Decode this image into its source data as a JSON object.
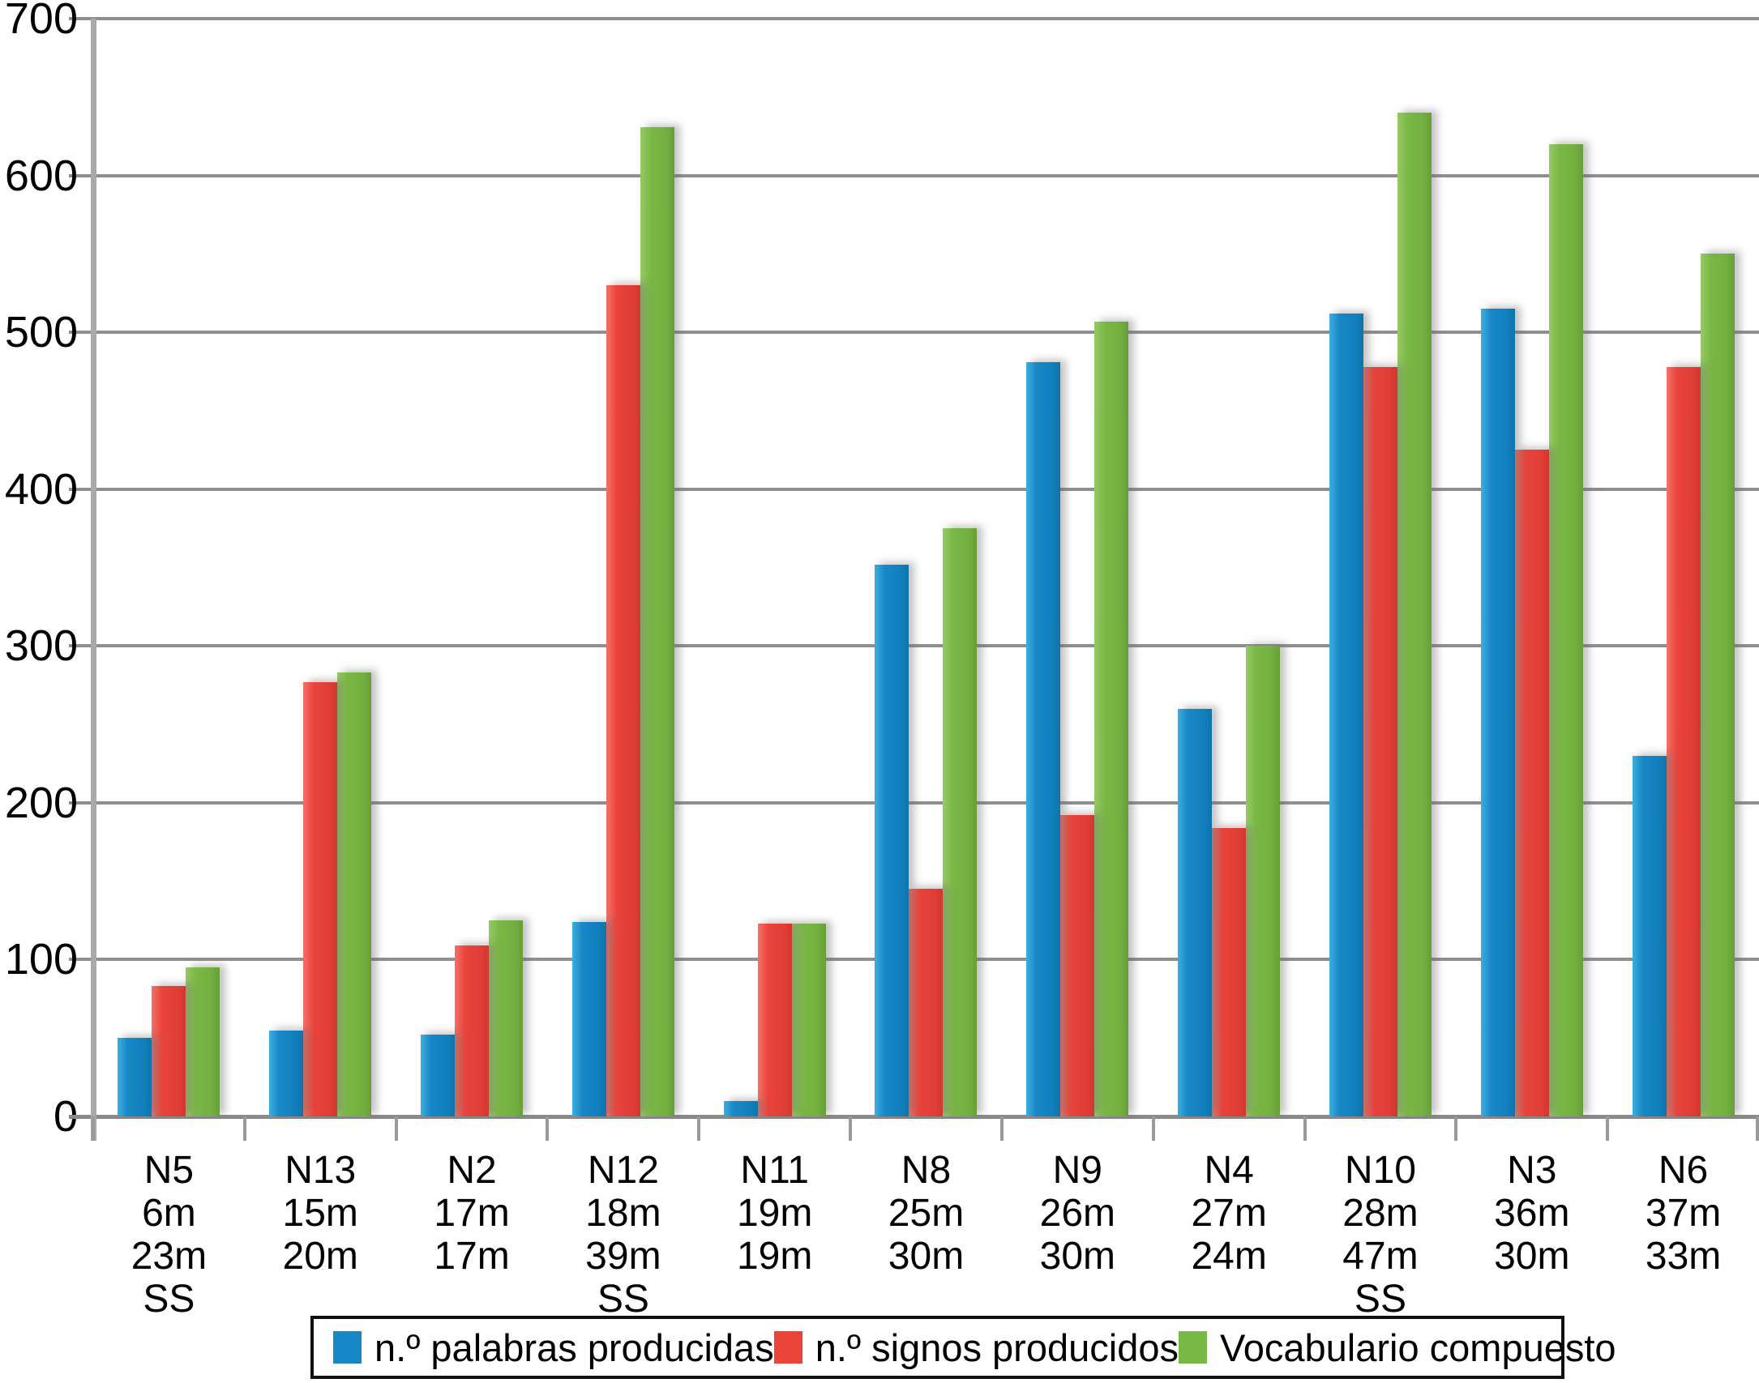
{
  "chart_data": {
    "type": "bar",
    "title": "",
    "xlabel": "",
    "ylabel": "",
    "ylim": [
      0,
      700
    ],
    "y_ticks": [
      0,
      100,
      200,
      300,
      400,
      500,
      600,
      700
    ],
    "grid": true,
    "legend_position": "bottom",
    "categories": [
      {
        "label": "N5",
        "sublabels": [
          "6m",
          "23m",
          "SS"
        ]
      },
      {
        "label": "N13",
        "sublabels": [
          "15m",
          "20m"
        ]
      },
      {
        "label": "N2",
        "sublabels": [
          "17m",
          "17m"
        ]
      },
      {
        "label": "N12",
        "sublabels": [
          "18m",
          "39m",
          "SS"
        ]
      },
      {
        "label": "N11",
        "sublabels": [
          "19m",
          "19m"
        ]
      },
      {
        "label": "N8",
        "sublabels": [
          "25m",
          "30m"
        ]
      },
      {
        "label": "N9",
        "sublabels": [
          "26m",
          "30m"
        ]
      },
      {
        "label": "N4",
        "sublabels": [
          "27m",
          "24m"
        ]
      },
      {
        "label": "N10",
        "sublabels": [
          "28m",
          "47m",
          "SS"
        ]
      },
      {
        "label": "N3",
        "sublabels": [
          "36m",
          "30m"
        ]
      },
      {
        "label": "N6",
        "sublabels": [
          "37m",
          "33m"
        ]
      }
    ],
    "series": [
      {
        "name": "n.º palabras producidas",
        "color": "#1787c6",
        "values": [
          50,
          55,
          52,
          124,
          10,
          352,
          481,
          260,
          512,
          515,
          230
        ]
      },
      {
        "name": "n.º signos producidos",
        "color": "#ea443b",
        "values": [
          83,
          277,
          109,
          530,
          123,
          145,
          192,
          184,
          478,
          425,
          478
        ]
      },
      {
        "name": "Vocabulario compuesto",
        "color": "#7ab845",
        "values": [
          95,
          283,
          125,
          631,
          123,
          375,
          507,
          300,
          640,
          620,
          550
        ]
      }
    ],
    "colors": {
      "gridline": "#8f8f8f",
      "axis": "#a9a9a9",
      "text": "#000000",
      "background": "#ffffff"
    }
  }
}
